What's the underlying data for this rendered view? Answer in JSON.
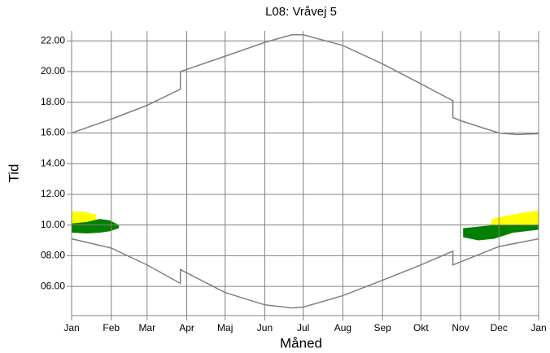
{
  "chart_data": {
    "type": "line",
    "title": "L08: Vråvej 5",
    "x_label": "Måned",
    "y_label": "Tid",
    "xlim": [
      0,
      365
    ],
    "xticks": [
      {
        "value": 0,
        "label": "Jan"
      },
      {
        "value": 31,
        "label": "Feb"
      },
      {
        "value": 59,
        "label": "Mar"
      },
      {
        "value": 90,
        "label": "Apr"
      },
      {
        "value": 120,
        "label": "Maj"
      },
      {
        "value": 151,
        "label": "Jun"
      },
      {
        "value": 181,
        "label": "Jul"
      },
      {
        "value": 212,
        "label": "Aug"
      },
      {
        "value": 243,
        "label": "Sep"
      },
      {
        "value": 273,
        "label": "Okt"
      },
      {
        "value": 304,
        "label": "Nov"
      },
      {
        "value": 334,
        "label": "Dec"
      },
      {
        "value": 365,
        "label": "Jan"
      }
    ],
    "ylim": [
      4.1,
      22.65
    ],
    "yticks": [
      {
        "value": 6,
        "label": "06.00"
      },
      {
        "value": 8,
        "label": "08.00"
      },
      {
        "value": 10,
        "label": "10.00"
      },
      {
        "value": 12,
        "label": "12.00"
      },
      {
        "value": 14,
        "label": "14.00"
      },
      {
        "value": 16,
        "label": "16.00"
      },
      {
        "value": 18,
        "label": "18.00"
      },
      {
        "value": 20,
        "label": "20.00"
      },
      {
        "value": 22,
        "label": "22.00"
      }
    ],
    "grid": true,
    "series": [
      {
        "color": "#808080",
        "x": [
          0,
          31,
          59,
          85,
          85,
          120,
          151,
          172,
          181,
          212,
          243,
          273,
          298,
          298,
          304,
          334,
          348,
          365
        ],
        "values": [
          16.0,
          16.9,
          17.8,
          18.85,
          20.0,
          21.0,
          21.9,
          22.4,
          22.4,
          21.7,
          20.5,
          19.2,
          18.1,
          17.0,
          16.8,
          16.0,
          15.9,
          15.95
        ]
      },
      {
        "color": "#808080",
        "x": [
          0,
          31,
          59,
          85,
          85,
          120,
          151,
          172,
          181,
          212,
          243,
          273,
          298,
          298,
          304,
          334,
          365
        ],
        "values": [
          9.1,
          8.5,
          7.4,
          6.2,
          7.1,
          5.6,
          4.8,
          4.6,
          4.65,
          5.4,
          6.4,
          7.4,
          8.3,
          7.4,
          7.6,
          8.6,
          9.1
        ]
      }
    ],
    "shadows": [
      {
        "color": "#ffff00",
        "x": [
          0,
          10,
          19
        ],
        "upper": [
          10.9,
          10.85,
          10.7
        ],
        "lower": [
          9.9,
          9.9,
          9.9
        ]
      },
      {
        "color": "#008000",
        "x": [
          0,
          12,
          22,
          30,
          37
        ],
        "upper": [
          10.1,
          10.2,
          10.4,
          10.3,
          10.0
        ],
        "lower": [
          9.5,
          9.45,
          9.5,
          9.6,
          9.8
        ]
      },
      {
        "color": "#ffff00",
        "x": [
          328,
          340,
          352,
          365
        ],
        "upper": [
          10.4,
          10.6,
          10.8,
          10.95
        ],
        "lower": [
          9.9,
          9.9,
          9.9,
          9.9
        ]
      },
      {
        "color": "#008000",
        "x": [
          306,
          318,
          330,
          345,
          365
        ],
        "upper": [
          9.8,
          9.9,
          10.0,
          10.0,
          10.0
        ],
        "lower": [
          9.2,
          9.0,
          9.1,
          9.5,
          9.7
        ]
      }
    ]
  }
}
